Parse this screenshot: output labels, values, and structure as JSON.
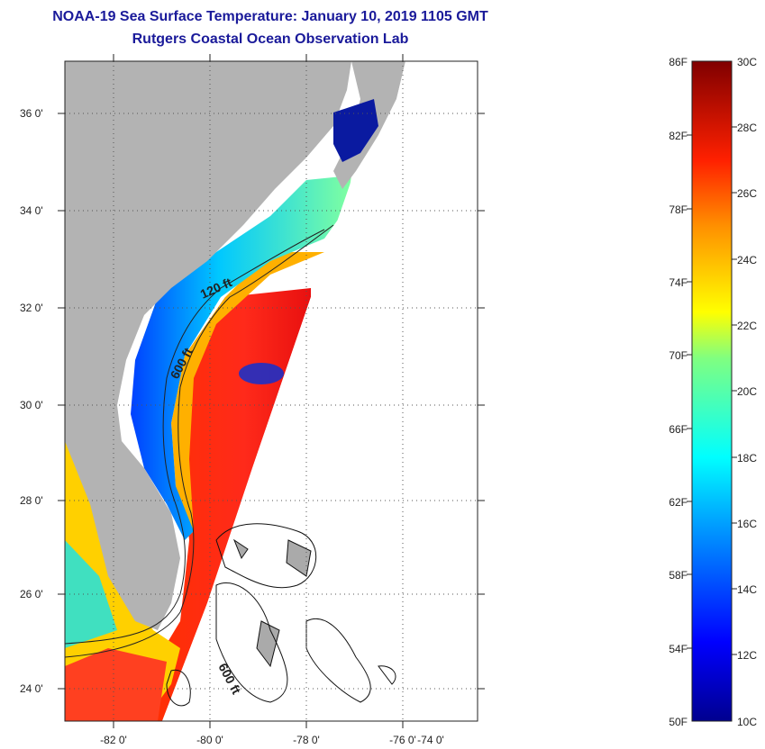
{
  "title": {
    "line1": "NOAA-19 Sea Surface Temperature:  January 10, 2019 1105 GMT",
    "line2": "Rutgers Coastal Ocean Observation Lab"
  },
  "map": {
    "lat_labels": [
      "36 0'",
      "34 0'",
      "32 0'",
      "30 0'",
      "28 0'",
      "26 0'",
      "24 0'"
    ],
    "lon_labels": [
      "-82 0'",
      "-80 0'",
      "-78 0'",
      "-76 0'",
      "-74 0'"
    ],
    "contour_labels": [
      "120 ft",
      "600 ft",
      "600 ft"
    ],
    "colors": {
      "land": "#b3b3b3",
      "cloud": "#ffffff",
      "grid": "#444444"
    }
  },
  "colorbar": {
    "fahrenheit_labels": [
      "86F",
      "82F",
      "78F",
      "74F",
      "70F",
      "66F",
      "62F",
      "58F",
      "54F",
      "50F"
    ],
    "celsius_labels": [
      "30C",
      "28C",
      "26C",
      "24C",
      "22C",
      "20C",
      "18C",
      "16C",
      "14C",
      "12C",
      "10C"
    ]
  }
}
